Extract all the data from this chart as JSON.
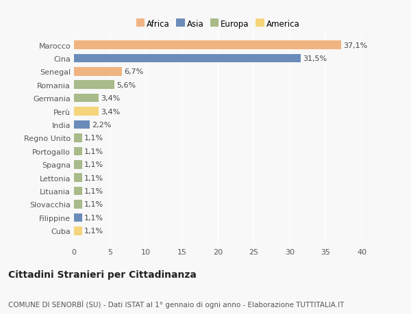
{
  "categories": [
    "Marocco",
    "Cina",
    "Senegal",
    "Romania",
    "Germania",
    "Perù",
    "India",
    "Regno Unito",
    "Portogallo",
    "Spagna",
    "Lettonia",
    "Lituania",
    "Slovacchia",
    "Filippine",
    "Cuba"
  ],
  "values": [
    37.1,
    31.5,
    6.7,
    5.6,
    3.4,
    3.4,
    2.2,
    1.1,
    1.1,
    1.1,
    1.1,
    1.1,
    1.1,
    1.1,
    1.1
  ],
  "labels": [
    "37,1%",
    "31,5%",
    "6,7%",
    "5,6%",
    "3,4%",
    "3,4%",
    "2,2%",
    "1,1%",
    "1,1%",
    "1,1%",
    "1,1%",
    "1,1%",
    "1,1%",
    "1,1%",
    "1,1%"
  ],
  "colors": [
    "#f0b482",
    "#6b8cba",
    "#f0b482",
    "#a8bb8a",
    "#a8bb8a",
    "#f5d57a",
    "#6b8cba",
    "#a8bb8a",
    "#a8bb8a",
    "#a8bb8a",
    "#a8bb8a",
    "#a8bb8a",
    "#a8bb8a",
    "#6b8cba",
    "#f5d57a"
  ],
  "legend": {
    "Africa": "#f0b482",
    "Asia": "#6b8cba",
    "Europa": "#a8bb8a",
    "America": "#f5d57a"
  },
  "xlim": [
    0,
    40
  ],
  "xticks": [
    0,
    5,
    10,
    15,
    20,
    25,
    30,
    35,
    40
  ],
  "title": "Cittadini Stranieri per Cittadinanza",
  "subtitle": "COMUNE DI SENORBÌ (SU) - Dati ISTAT al 1° gennaio di ogni anno - Elaborazione TUTTITALIA.IT",
  "background_color": "#f8f8f8",
  "bar_height": 0.65,
  "label_fontsize": 8,
  "tick_fontsize": 8,
  "title_fontsize": 10,
  "subtitle_fontsize": 7.5
}
